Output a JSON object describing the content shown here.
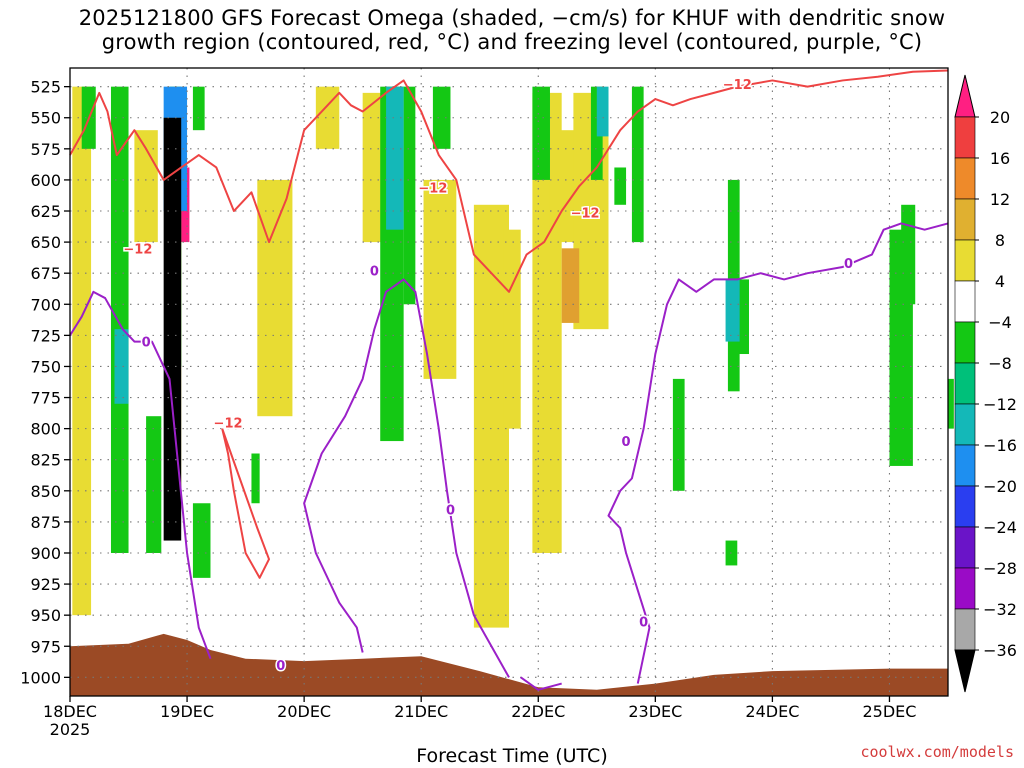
{
  "title": {
    "line1": "2025121800 GFS Forecast Omega (shaded, −cm/s) for KHUF with dendritic snow",
    "line2": "growth region (contoured, red, °C) and freezing level (contoured, purple, °C)"
  },
  "credit": "coolwx.com/models",
  "colors": {
    "terrain": "#9b4a25",
    "dgz_contour": "#ee4444",
    "freezing_contour": "#9b20c8",
    "grid": "#777777"
  },
  "chart_data": {
    "type": "heatmap",
    "title": "2025121800 GFS Forecast Omega for KHUF",
    "xlabel": "Forecast Time (UTC)",
    "ylabel": "",
    "x_ticks": [
      {
        "label": "18DEC",
        "sub": "2025",
        "t": 0
      },
      {
        "label": "19DEC",
        "sub": "",
        "t": 1
      },
      {
        "label": "20DEC",
        "sub": "",
        "t": 2
      },
      {
        "label": "21DEC",
        "sub": "",
        "t": 3
      },
      {
        "label": "22DEC",
        "sub": "",
        "t": 4
      },
      {
        "label": "23DEC",
        "sub": "",
        "t": 5
      },
      {
        "label": "24DEC",
        "sub": "",
        "t": 6
      },
      {
        "label": "25DEC",
        "sub": "",
        "t": 7
      }
    ],
    "xlim": [
      0,
      7.5
    ],
    "ylim": [
      1015,
      510
    ],
    "y_ticks": [
      525,
      550,
      575,
      600,
      625,
      650,
      675,
      700,
      725,
      750,
      775,
      800,
      825,
      850,
      875,
      900,
      925,
      950,
      975,
      1000
    ],
    "colorbar": {
      "labels": [
        "20",
        "16",
        "12",
        "8",
        "4",
        "−4",
        "−8",
        "−12",
        "−16",
        "−20",
        "−24",
        "−28",
        "−32",
        "−36"
      ],
      "values": [
        20,
        16,
        12,
        8,
        4,
        -4,
        -8,
        -12,
        -16,
        -20,
        -24,
        -28,
        -32,
        -36
      ],
      "colors": [
        "#ff1f82",
        "#ef3f3f",
        "#ee8a2a",
        "#e0b030",
        "#e8dc33",
        "#ffffff",
        "#14c814",
        "#00c07a",
        "#14b8b8",
        "#1e8ff0",
        "#2a3ef0",
        "#6a14c8",
        "#9a0bc6",
        "#a8a8a8",
        "#000000"
      ]
    },
    "series": [
      {
        "name": "Omega ≥ 4 (yellow)",
        "color": "#e8dc33",
        "cells": [
          [
            0.02,
            0.18,
            525,
            950
          ],
          [
            0.4,
            0.5,
            600,
            880
          ],
          [
            0.55,
            0.75,
            560,
            650
          ],
          [
            0.82,
            0.95,
            575,
            860
          ],
          [
            1.6,
            1.9,
            600,
            790
          ],
          [
            2.1,
            2.3,
            525,
            575
          ],
          [
            2.5,
            2.75,
            530,
            650
          ],
          [
            3.02,
            3.3,
            600,
            760
          ],
          [
            3.45,
            3.75,
            620,
            960
          ],
          [
            3.7,
            3.85,
            640,
            800
          ],
          [
            3.95,
            4.2,
            530,
            900
          ],
          [
            4.1,
            4.35,
            560,
            650
          ],
          [
            4.3,
            4.6,
            530,
            720
          ]
        ]
      },
      {
        "name": "Omega ≥ 8 (orange)",
        "color": "#e0a030",
        "cells": [
          [
            4.2,
            4.35,
            655,
            715
          ]
        ]
      },
      {
        "name": "Omega ≥ 16 (red/pink)",
        "color": "#ff1f82",
        "cells": [
          [
            0.9,
            1.02,
            590,
            650
          ]
        ]
      },
      {
        "name": "Omega ≤ −4 (green)",
        "color": "#14c814",
        "cells": [
          [
            0.1,
            0.22,
            525,
            575
          ],
          [
            0.35,
            0.5,
            525,
            900
          ],
          [
            0.65,
            0.78,
            790,
            900
          ],
          [
            0.85,
            0.95,
            525,
            750
          ],
          [
            1.05,
            1.15,
            525,
            560
          ],
          [
            1.05,
            1.2,
            860,
            920
          ],
          [
            1.55,
            1.62,
            820,
            860
          ],
          [
            2.65,
            2.85,
            525,
            810
          ],
          [
            2.85,
            2.95,
            525,
            700
          ],
          [
            3.1,
            3.25,
            525,
            575
          ],
          [
            3.95,
            4.1,
            525,
            600
          ],
          [
            4.45,
            4.55,
            525,
            600
          ],
          [
            4.8,
            4.9,
            525,
            650
          ],
          [
            4.65,
            4.75,
            590,
            620
          ],
          [
            5.15,
            5.25,
            760,
            850
          ],
          [
            5.62,
            5.72,
            600,
            770
          ],
          [
            5.7,
            5.8,
            680,
            740
          ],
          [
            5.6,
            5.7,
            890,
            910
          ],
          [
            7.0,
            7.2,
            640,
            830
          ],
          [
            7.1,
            7.22,
            620,
            700
          ],
          [
            7.5,
            7.55,
            760,
            800
          ]
        ]
      },
      {
        "name": "Omega ≤ −12 (teal)",
        "color": "#14b8b8",
        "cells": [
          [
            0.38,
            0.5,
            720,
            780
          ],
          [
            2.7,
            2.85,
            525,
            640
          ],
          [
            4.5,
            4.6,
            525,
            565
          ],
          [
            5.6,
            5.72,
            680,
            730
          ]
        ]
      },
      {
        "name": "Omega ≤ −16 (blue)",
        "color": "#1e8ff0",
        "cells": [
          [
            0.8,
            1.0,
            525,
            625
          ]
        ]
      },
      {
        "name": "Omega ≤ −32 (black)",
        "color": "#000000",
        "cells": [
          [
            0.8,
            0.95,
            550,
            890
          ]
        ]
      },
      {
        "name": "Dendritic snow growth (−12 °C)",
        "contour_label": "−12",
        "color": "#ee4444",
        "lines": [
          [
            [
              0.0,
              580
            ],
            [
              0.12,
              560
            ],
            [
              0.25,
              530
            ],
            [
              0.32,
              545
            ],
            [
              0.4,
              580
            ],
            [
              0.55,
              560
            ],
            [
              0.65,
              575
            ],
            [
              0.8,
              600
            ],
            [
              0.95,
              590
            ],
            [
              1.1,
              580
            ],
            [
              1.25,
              590
            ],
            [
              1.4,
              625
            ],
            [
              1.55,
              610
            ],
            [
              1.7,
              650
            ],
            [
              1.85,
              615
            ],
            [
              2.0,
              560
            ],
            [
              2.15,
              545
            ],
            [
              2.3,
              530
            ],
            [
              2.4,
              540
            ],
            [
              2.5,
              545
            ],
            [
              2.7,
              530
            ],
            [
              2.85,
              520
            ],
            [
              3.0,
              545
            ],
            [
              3.15,
              580
            ],
            [
              3.3,
              600
            ],
            [
              3.45,
              660
            ],
            [
              3.6,
              675
            ],
            [
              3.75,
              690
            ],
            [
              3.9,
              660
            ],
            [
              4.05,
              650
            ],
            [
              4.2,
              625
            ],
            [
              4.35,
              605
            ],
            [
              4.5,
              590
            ],
            [
              4.7,
              560
            ],
            [
              4.85,
              545
            ],
            [
              5.0,
              535
            ],
            [
              5.15,
              540
            ],
            [
              5.3,
              535
            ],
            [
              5.5,
              530
            ],
            [
              5.7,
              525
            ],
            [
              6.0,
              520
            ],
            [
              6.3,
              525
            ],
            [
              6.6,
              520
            ],
            [
              6.9,
              517
            ],
            [
              7.2,
              513
            ],
            [
              7.5,
              512
            ]
          ],
          [
            [
              1.3,
              800
            ],
            [
              1.45,
              840
            ],
            [
              1.6,
              880
            ],
            [
              1.7,
              905
            ],
            [
              1.62,
              920
            ],
            [
              1.5,
              900
            ],
            [
              1.4,
              850
            ],
            [
              1.35,
              820
            ],
            [
              1.3,
              800
            ]
          ]
        ]
      },
      {
        "name": "Freezing level (0 °C)",
        "contour_label": "0",
        "color": "#9b20c8",
        "lines": [
          [
            [
              0.0,
              725
            ],
            [
              0.1,
              710
            ],
            [
              0.2,
              690
            ],
            [
              0.3,
              695
            ],
            [
              0.45,
              720
            ],
            [
              0.55,
              730
            ],
            [
              0.7,
              730
            ],
            [
              0.85,
              760
            ],
            [
              1.0,
              900
            ],
            [
              1.1,
              960
            ],
            [
              1.2,
              985
            ]
          ],
          [
            [
              2.5,
              980
            ],
            [
              2.45,
              960
            ],
            [
              2.3,
              940
            ],
            [
              2.1,
              900
            ],
            [
              2.0,
              860
            ],
            [
              2.15,
              820
            ],
            [
              2.35,
              790
            ],
            [
              2.5,
              760
            ],
            [
              2.6,
              720
            ],
            [
              2.7,
              690
            ],
            [
              2.85,
              680
            ],
            [
              2.95,
              690
            ],
            [
              3.05,
              740
            ],
            [
              3.15,
              800
            ],
            [
              3.22,
              850
            ],
            [
              3.3,
              900
            ],
            [
              3.45,
              950
            ],
            [
              3.6,
              975
            ],
            [
              3.75,
              1000
            ]
          ],
          [
            [
              3.85,
              1000
            ],
            [
              4.0,
              1010
            ],
            [
              4.2,
              1005
            ]
          ],
          [
            [
              4.85,
              1005
            ],
            [
              4.95,
              960
            ],
            [
              4.85,
              930
            ],
            [
              4.75,
              900
            ],
            [
              4.7,
              880
            ],
            [
              4.6,
              870
            ],
            [
              4.7,
              850
            ],
            [
              4.8,
              840
            ],
            [
              4.9,
              800
            ],
            [
              5.0,
              740
            ],
            [
              5.1,
              700
            ],
            [
              5.2,
              680
            ],
            [
              5.35,
              690
            ],
            [
              5.5,
              680
            ],
            [
              5.7,
              680
            ],
            [
              5.9,
              675
            ],
            [
              6.1,
              680
            ],
            [
              6.3,
              675
            ],
            [
              6.6,
              670
            ],
            [
              6.85,
              660
            ],
            [
              6.95,
              640
            ],
            [
              7.1,
              635
            ],
            [
              7.3,
              640
            ],
            [
              7.5,
              635
            ]
          ]
        ]
      }
    ]
  }
}
